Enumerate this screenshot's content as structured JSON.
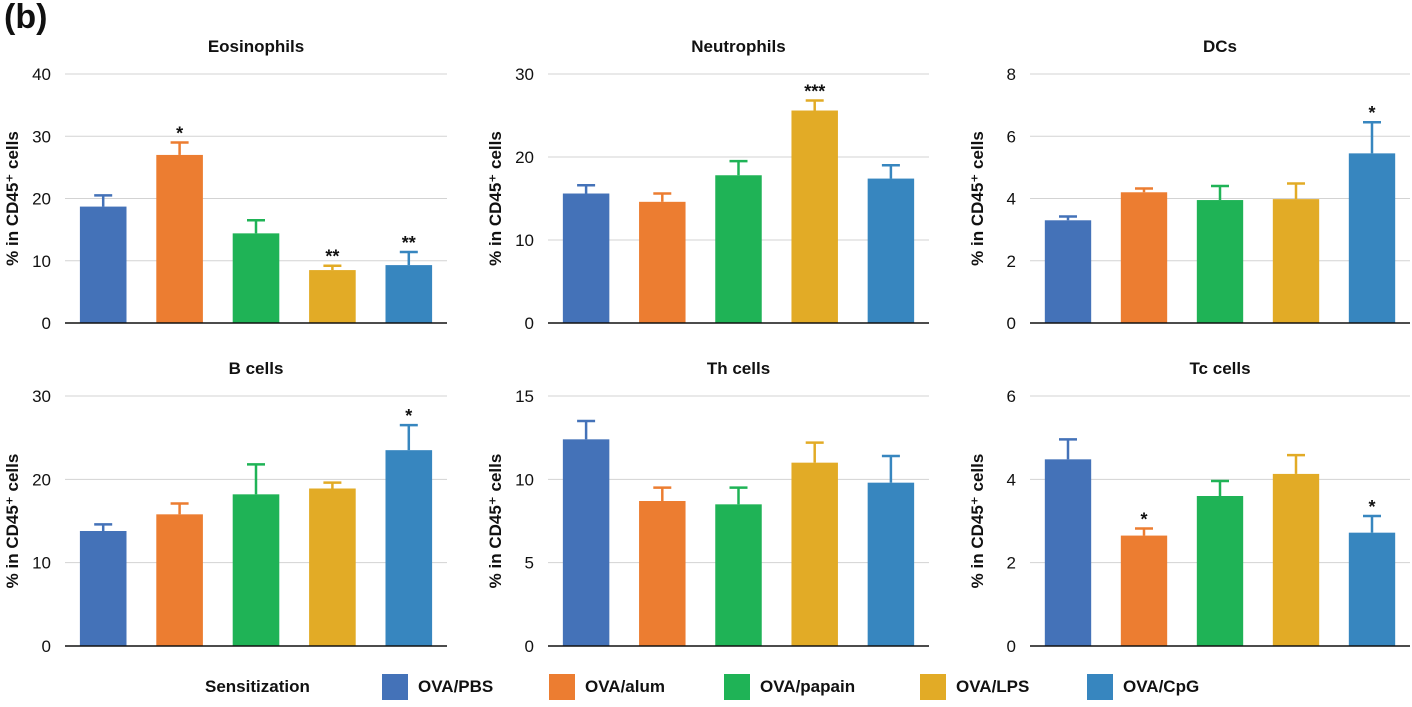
{
  "panel_label": "(b)",
  "colors": {
    "OVA/PBS": "#4472b8",
    "OVA/alum": "#ec7d31",
    "OVA/papain": "#1fb356",
    "OVA/LPS": "#e2ab26",
    "OVA/CpG": "#3786bf"
  },
  "legend": {
    "title": "Sensitization",
    "items": [
      "OVA/PBS",
      "OVA/alum",
      "OVA/papain",
      "OVA/LPS",
      "OVA/CpG"
    ]
  },
  "chart_data": [
    {
      "type": "bar",
      "title": "Eosinophils",
      "ylabel": "% in CD45⁺ cells",
      "categories": [
        "OVA/PBS",
        "OVA/alum",
        "OVA/papain",
        "OVA/LPS",
        "OVA/CpG"
      ],
      "values": [
        18.7,
        27.0,
        14.4,
        8.5,
        9.3
      ],
      "errors": [
        1.8,
        2.0,
        2.1,
        0.7,
        2.1
      ],
      "significance": [
        "",
        "*",
        "",
        "**",
        "**"
      ],
      "ylim": [
        0,
        40
      ],
      "yticks": [
        0,
        10,
        20,
        30,
        40
      ],
      "grid": true
    },
    {
      "type": "bar",
      "title": "Neutrophils",
      "ylabel": "% in CD45⁺ cells",
      "categories": [
        "OVA/PBS",
        "OVA/alum",
        "OVA/papain",
        "OVA/LPS",
        "OVA/CpG"
      ],
      "values": [
        15.6,
        14.6,
        17.8,
        25.6,
        17.4
      ],
      "errors": [
        1.0,
        1.0,
        1.7,
        1.2,
        1.6
      ],
      "significance": [
        "",
        "",
        "",
        "***",
        ""
      ],
      "ylim": [
        0,
        30
      ],
      "yticks": [
        0,
        10,
        20,
        30
      ],
      "grid": true
    },
    {
      "type": "bar",
      "title": "DCs",
      "ylabel": "% in CD45⁺ cells",
      "categories": [
        "OVA/PBS",
        "OVA/alum",
        "OVA/papain",
        "OVA/LPS",
        "OVA/CpG"
      ],
      "values": [
        3.3,
        4.2,
        3.95,
        3.98,
        5.45
      ],
      "errors": [
        0.12,
        0.12,
        0.45,
        0.5,
        1.0
      ],
      "significance": [
        "",
        "",
        "",
        "",
        "*"
      ],
      "ylim": [
        0,
        8
      ],
      "yticks": [
        0,
        2,
        4,
        6,
        8
      ],
      "grid": true
    },
    {
      "type": "bar",
      "title": "B cells",
      "ylabel": "% in CD45⁺ cells",
      "categories": [
        "OVA/PBS",
        "OVA/alum",
        "OVA/papain",
        "OVA/LPS",
        "OVA/CpG"
      ],
      "values": [
        13.8,
        15.8,
        18.2,
        18.9,
        23.5
      ],
      "errors": [
        0.8,
        1.3,
        3.6,
        0.7,
        3.0
      ],
      "significance": [
        "",
        "",
        "",
        "",
        "*"
      ],
      "ylim": [
        0,
        30
      ],
      "yticks": [
        0,
        10,
        20,
        30
      ],
      "grid": true
    },
    {
      "type": "bar",
      "title": "Th cells",
      "ylabel": "% in CD45⁺ cells",
      "categories": [
        "OVA/PBS",
        "OVA/alum",
        "OVA/papain",
        "OVA/LPS",
        "OVA/CpG"
      ],
      "values": [
        12.4,
        8.7,
        8.5,
        11.0,
        9.8
      ],
      "errors": [
        1.1,
        0.8,
        1.0,
        1.2,
        1.6
      ],
      "significance": [
        "",
        "",
        "",
        "",
        ""
      ],
      "ylim": [
        0,
        15
      ],
      "yticks": [
        0,
        5,
        10,
        15
      ],
      "grid": true
    },
    {
      "type": "bar",
      "title": "Tc cells",
      "ylabel": "% in CD45⁺ cells",
      "categories": [
        "OVA/PBS",
        "OVA/alum",
        "OVA/papain",
        "OVA/LPS",
        "OVA/CpG"
      ],
      "values": [
        4.48,
        2.65,
        3.6,
        4.13,
        2.72
      ],
      "errors": [
        0.48,
        0.17,
        0.36,
        0.45,
        0.4
      ],
      "significance": [
        "",
        "*",
        "",
        "",
        "*"
      ],
      "ylim": [
        0,
        6
      ],
      "yticks": [
        0,
        2,
        4,
        6
      ],
      "grid": true
    }
  ]
}
